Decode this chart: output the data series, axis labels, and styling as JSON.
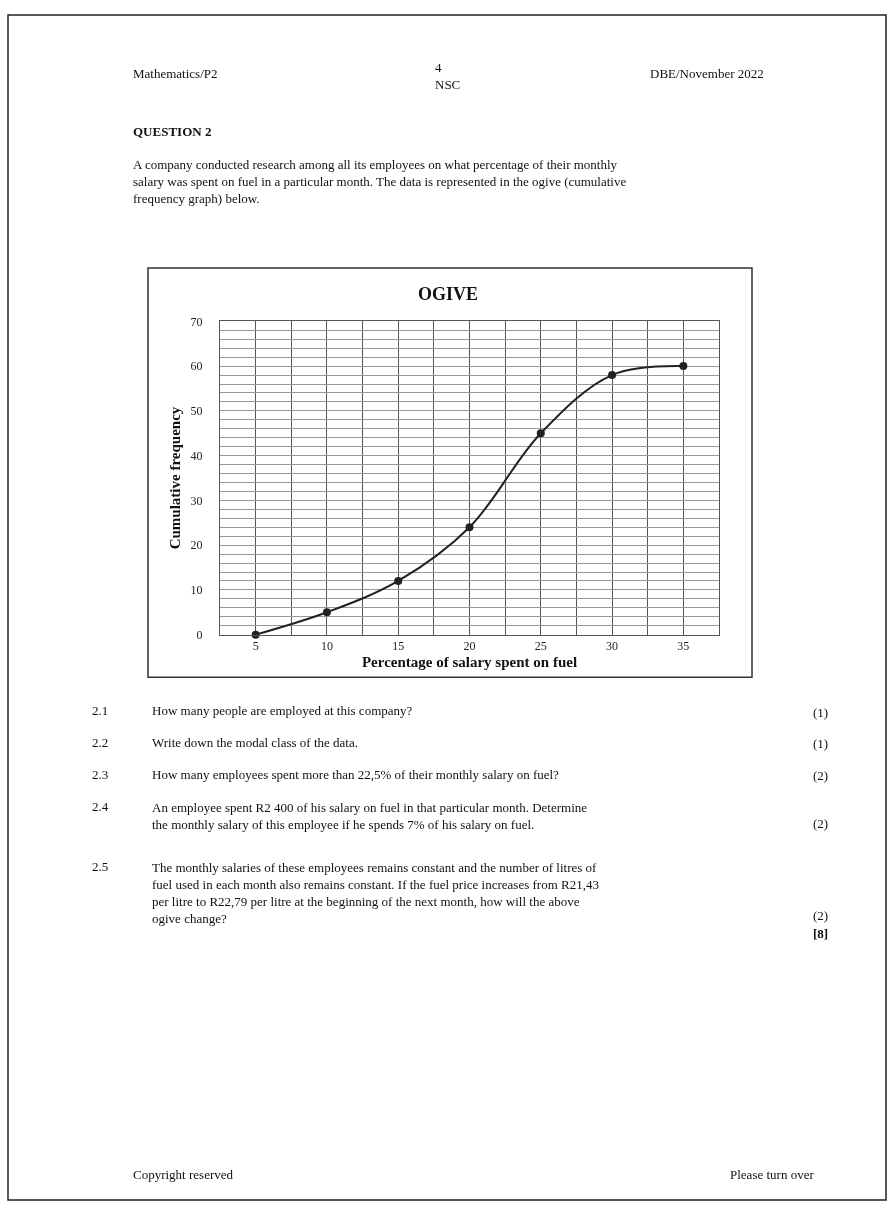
{
  "chart_data": {
    "type": "line",
    "title": "OGIVE",
    "xlabel": "Percentage of salary spent on fuel",
    "ylabel": "Cumulative frequency",
    "x": [
      5,
      10,
      15,
      20,
      25,
      30,
      35
    ],
    "series": [
      {
        "color": "#222222",
        "values": [
          0,
          5,
          12,
          24,
          45,
          58,
          60
        ]
      }
    ],
    "xlim": [
      2.5,
      37.5
    ],
    "xticks": [
      {
        "value": 2.5,
        "label": null
      },
      5,
      {
        "value": 7.5,
        "label": null
      },
      10,
      {
        "value": 12.5,
        "label": null
      },
      15,
      {
        "value": 17.5,
        "label": null
      },
      20,
      {
        "value": 22.5,
        "label": null
      },
      25,
      {
        "value": 27.5,
        "label": null
      },
      30,
      {
        "value": 32.5,
        "label": null
      },
      35,
      {
        "value": 37.5,
        "label": null
      }
    ],
    "ylim": [
      0,
      70
    ],
    "yticks": [
      0,
      {
        "value": 2,
        "label": null
      },
      {
        "value": 4,
        "label": null
      },
      {
        "value": 6,
        "label": null
      },
      {
        "value": 8,
        "label": null
      },
      10,
      {
        "value": 12,
        "label": null
      },
      {
        "value": 14,
        "label": null
      },
      {
        "value": 16,
        "label": null
      },
      {
        "value": 18,
        "label": null
      },
      20,
      {
        "value": 22,
        "label": null
      },
      {
        "value": 24,
        "label": null
      },
      {
        "value": 26,
        "label": null
      },
      {
        "value": 28,
        "label": null
      },
      30,
      {
        "value": 32,
        "label": null
      },
      {
        "value": 34,
        "label": null
      },
      {
        "value": 36,
        "label": null
      },
      {
        "value": 38,
        "label": null
      },
      40,
      {
        "value": 42,
        "label": null
      },
      {
        "value": 44,
        "label": null
      },
      {
        "value": 46,
        "label": null
      },
      {
        "value": 48,
        "label": null
      },
      50,
      {
        "value": 52,
        "label": null
      },
      {
        "value": 54,
        "label": null
      },
      {
        "value": 56,
        "label": null
      },
      {
        "value": 58,
        "label": null
      },
      60,
      {
        "value": 62,
        "label": null
      },
      {
        "value": 64,
        "label": null
      },
      {
        "value": 66,
        "label": null
      },
      {
        "value": 68,
        "label": null
      },
      70
    ],
    "grid": true,
    "marker": "circle",
    "line_style": "solid",
    "annotations": [
      "Mathematics/P2",
      "4\nNSC",
      "DBE/November 2022",
      "QUESTION 2",
      "A company conducted research among all its employees on what percentage of their monthly\nsalary was spent on fuel in a particular month. The data is represented in the ogive (cumulative\nfrequency graph) below.",
      "2.1",
      "How many people are employed at this company?",
      "(1)",
      "2.2",
      "Write down the modal class of the data.",
      "(1)",
      "2.3",
      "How many employees spent more than 22,5% of their monthly salary on fuel?",
      "(2)",
      "2.4",
      "An employee spent R2 400 of his salary on fuel in that particular month. Determine\nthe monthly salary of this employee if he spends 7% of his salary on fuel.",
      "(2)",
      "2.5",
      "The monthly salaries of these employees remains constant and the number of litres of\nfuel used in each month also remains constant. If the fuel price increases from R21,43\nper litre to R22,79 per litre at the beginning of the next month, how will the above\nogive change?",
      "(2)",
      "[8]",
      "Copyright reserved",
      "Please turn over"
    ]
  }
}
